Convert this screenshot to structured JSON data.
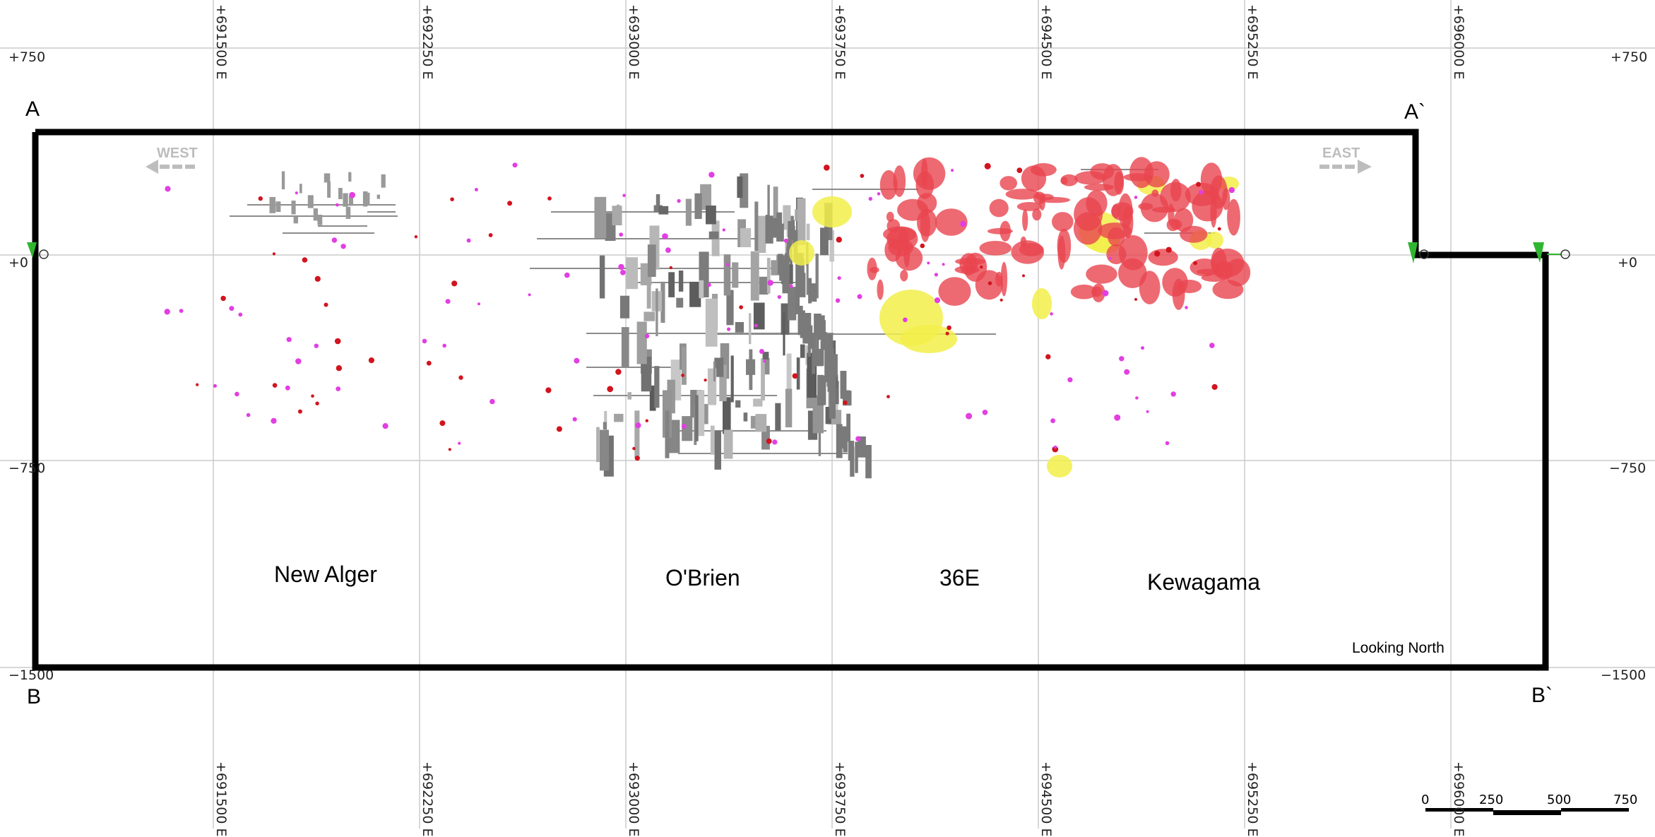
{
  "map": {
    "orientation_label": "Looking North",
    "direction_arrows": {
      "west": "WEST",
      "east": "EAST"
    },
    "section_corners": {
      "a": "A",
      "a_prime": "A`",
      "b": "B",
      "b_prime": "B`"
    },
    "deposits": [
      "New Alger",
      "O'Brien",
      "36E",
      "Kewagama"
    ],
    "easting_ticks": [
      "+691500 E",
      "+692250 E",
      "+693000 E",
      "+693750 E",
      "+694500 E",
      "+695250 E",
      "+696000 E"
    ],
    "elevation_ticks": [
      "+750",
      "+0",
      "−750",
      "−1500"
    ],
    "scale_bar": {
      "labels": [
        "0",
        "250",
        "500",
        "750"
      ]
    },
    "colors": {
      "section_line": "#000000",
      "grid": "#cccccc",
      "drillhole_gray": "#8c8c8c",
      "grade_red": "#e8454f",
      "grade_yellow": "#f2ef4a",
      "assay_magenta": "#e23ee2",
      "assay_red": "#d2141e",
      "direction_arrow": "#bdbdbd",
      "collar_marker": "#2fb52f"
    },
    "icons": [
      "west-arrow-icon",
      "east-arrow-icon",
      "collar-flag-icon"
    ]
  }
}
